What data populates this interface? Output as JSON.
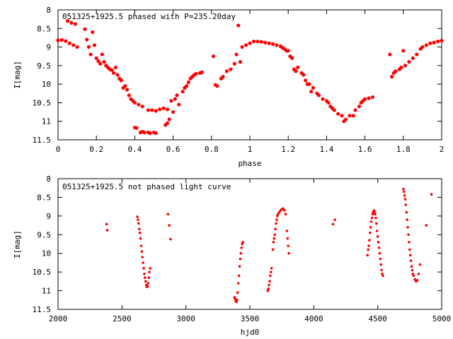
{
  "chart_data": [
    {
      "type": "scatter",
      "title": "051325+1925.5 phased with P=235.20day",
      "xlabel": "phase",
      "ylabel": "I[mag]",
      "xlim": [
        0,
        2
      ],
      "ylim": [
        11.5,
        8
      ],
      "y_inverted": true,
      "grid": false,
      "marker_color": "#ff0000",
      "xticks": [
        0,
        0.2,
        0.4,
        0.6,
        0.8,
        1,
        1.2,
        1.4,
        1.6,
        1.8,
        2
      ],
      "xtick_labels": [
        "0",
        "0.2",
        "0.4",
        "0.6",
        "0.8",
        "1",
        "1.2",
        "1.4",
        "1.6",
        "1.8",
        "2"
      ],
      "yticks": [
        8,
        8.5,
        9,
        9.5,
        10,
        10.5,
        11,
        11.5
      ],
      "ytick_labels": [
        "8",
        "8.5",
        "9",
        "9.5",
        "10",
        "10.5",
        "11",
        "11.5"
      ],
      "points": [
        [
          0.0,
          8.82
        ],
        [
          0.02,
          8.81
        ],
        [
          0.04,
          8.84
        ],
        [
          0.06,
          8.9
        ],
        [
          0.08,
          8.95
        ],
        [
          0.1,
          9.0
        ],
        [
          0.05,
          8.3
        ],
        [
          0.07,
          8.35
        ],
        [
          0.09,
          8.38
        ],
        [
          0.14,
          8.52
        ],
        [
          0.15,
          8.8
        ],
        [
          0.16,
          9.0
        ],
        [
          0.17,
          9.2
        ],
        [
          0.18,
          8.6
        ],
        [
          0.19,
          8.95
        ],
        [
          0.2,
          9.3
        ],
        [
          0.21,
          9.38
        ],
        [
          0.22,
          9.45
        ],
        [
          0.23,
          9.2
        ],
        [
          0.24,
          9.4
        ],
        [
          0.25,
          9.5
        ],
        [
          0.26,
          9.55
        ],
        [
          0.27,
          9.6
        ],
        [
          0.28,
          9.62
        ],
        [
          0.29,
          9.7
        ],
        [
          0.3,
          9.55
        ],
        [
          0.31,
          9.75
        ],
        [
          0.32,
          9.85
        ],
        [
          0.33,
          9.9
        ],
        [
          0.34,
          10.1
        ],
        [
          0.35,
          10.05
        ],
        [
          0.36,
          10.15
        ],
        [
          0.37,
          10.3
        ],
        [
          0.38,
          10.4
        ],
        [
          0.39,
          10.45
        ],
        [
          0.4,
          10.5
        ],
        [
          0.42,
          10.55
        ],
        [
          0.44,
          10.6
        ],
        [
          0.4,
          11.17
        ],
        [
          0.41,
          11.18
        ],
        [
          0.43,
          11.3
        ],
        [
          0.44,
          11.28
        ],
        [
          0.45,
          11.3
        ],
        [
          0.47,
          11.3
        ],
        [
          0.48,
          11.32
        ],
        [
          0.5,
          11.3
        ],
        [
          0.51,
          11.32
        ],
        [
          0.47,
          10.7
        ],
        [
          0.49,
          10.7
        ],
        [
          0.51,
          10.72
        ],
        [
          0.53,
          10.68
        ],
        [
          0.55,
          10.65
        ],
        [
          0.57,
          10.68
        ],
        [
          0.56,
          11.1
        ],
        [
          0.57,
          11.05
        ],
        [
          0.58,
          10.95
        ],
        [
          0.6,
          10.75
        ],
        [
          0.59,
          10.45
        ],
        [
          0.61,
          10.4
        ],
        [
          0.62,
          10.3
        ],
        [
          0.63,
          10.55
        ],
        [
          0.65,
          10.2
        ],
        [
          0.66,
          10.1
        ],
        [
          0.67,
          10.05
        ],
        [
          0.68,
          9.95
        ],
        [
          0.69,
          9.85
        ],
        [
          0.7,
          9.8
        ],
        [
          0.71,
          9.75
        ],
        [
          0.72,
          9.72
        ],
        [
          0.74,
          9.7
        ],
        [
          0.75,
          9.68
        ],
        [
          0.81,
          9.25
        ],
        [
          0.82,
          10.02
        ],
        [
          0.83,
          10.05
        ],
        [
          0.85,
          9.85
        ],
        [
          0.86,
          9.8
        ],
        [
          0.88,
          9.65
        ],
        [
          0.9,
          9.6
        ],
        [
          0.92,
          9.45
        ],
        [
          0.93,
          9.2
        ],
        [
          0.94,
          8.42
        ],
        [
          0.95,
          9.4
        ],
        [
          0.96,
          9.0
        ],
        [
          0.98,
          8.95
        ],
        [
          1.0,
          8.9
        ],
        [
          1.02,
          8.85
        ],
        [
          1.04,
          8.85
        ],
        [
          1.06,
          8.86
        ],
        [
          1.08,
          8.88
        ],
        [
          1.1,
          8.9
        ],
        [
          1.12,
          8.92
        ],
        [
          1.14,
          8.95
        ],
        [
          1.16,
          8.98
        ],
        [
          1.17,
          9.02
        ],
        [
          1.18,
          9.05
        ],
        [
          1.19,
          9.1
        ],
        [
          1.2,
          9.1
        ],
        [
          1.21,
          9.25
        ],
        [
          1.22,
          9.3
        ],
        [
          1.23,
          9.6
        ],
        [
          1.24,
          9.65
        ],
        [
          1.25,
          9.55
        ],
        [
          1.27,
          9.7
        ],
        [
          1.28,
          9.75
        ],
        [
          1.29,
          9.9
        ],
        [
          1.3,
          10.0
        ],
        [
          1.31,
          10.0
        ],
        [
          1.32,
          10.2
        ],
        [
          1.33,
          10.1
        ],
        [
          1.35,
          10.25
        ],
        [
          1.36,
          10.3
        ],
        [
          1.38,
          10.4
        ],
        [
          1.4,
          10.45
        ],
        [
          1.41,
          10.5
        ],
        [
          1.42,
          10.6
        ],
        [
          1.43,
          10.65
        ],
        [
          1.44,
          10.7
        ],
        [
          1.46,
          10.8
        ],
        [
          1.48,
          10.85
        ],
        [
          1.49,
          11.0
        ],
        [
          1.5,
          10.95
        ],
        [
          1.52,
          10.85
        ],
        [
          1.54,
          10.85
        ],
        [
          1.55,
          10.7
        ],
        [
          1.57,
          10.6
        ],
        [
          1.58,
          10.5
        ],
        [
          1.59,
          10.45
        ],
        [
          1.6,
          10.4
        ],
        [
          1.62,
          10.38
        ],
        [
          1.64,
          10.35
        ],
        [
          1.73,
          9.2
        ],
        [
          1.74,
          9.8
        ],
        [
          1.75,
          9.7
        ],
        [
          1.76,
          9.65
        ],
        [
          1.78,
          9.6
        ],
        [
          1.79,
          9.55
        ],
        [
          1.8,
          9.1
        ],
        [
          1.81,
          9.5
        ],
        [
          1.83,
          9.4
        ],
        [
          1.85,
          9.3
        ],
        [
          1.87,
          9.2
        ],
        [
          1.89,
          9.05
        ],
        [
          1.9,
          9.0
        ],
        [
          1.92,
          8.95
        ],
        [
          1.94,
          8.9
        ],
        [
          1.96,
          8.88
        ],
        [
          1.98,
          8.85
        ],
        [
          2.0,
          8.83
        ]
      ]
    },
    {
      "type": "scatter",
      "title": "051325+1925.5 not phased light curve",
      "xlabel": "hjd0",
      "ylabel": "I[mag]",
      "xlim": [
        2000,
        5000
      ],
      "ylim": [
        11.5,
        8
      ],
      "y_inverted": true,
      "grid": false,
      "marker_color": "#ff0000",
      "xticks": [
        2000,
        2500,
        3000,
        3500,
        4000,
        4500,
        5000
      ],
      "xtick_labels": [
        "2000",
        "2500",
        "3000",
        "3500",
        "4000",
        "4500",
        "5000"
      ],
      "yticks": [
        8,
        8.5,
        9,
        9.5,
        10,
        10.5,
        11,
        11.5
      ],
      "ytick_labels": [
        "8",
        "8.5",
        "9",
        "9.5",
        "10",
        "10.5",
        "11",
        "11.5"
      ],
      "points": [
        [
          2380,
          9.22
        ],
        [
          2384,
          9.38
        ],
        [
          2620,
          9.02
        ],
        [
          2625,
          9.1
        ],
        [
          2630,
          9.2
        ],
        [
          2635,
          9.35
        ],
        [
          2640,
          9.45
        ],
        [
          2645,
          9.6
        ],
        [
          2650,
          9.8
        ],
        [
          2655,
          9.95
        ],
        [
          2660,
          10.1
        ],
        [
          2665,
          10.25
        ],
        [
          2670,
          10.4
        ],
        [
          2675,
          10.55
        ],
        [
          2680,
          10.65
        ],
        [
          2685,
          10.75
        ],
        [
          2690,
          10.85
        ],
        [
          2695,
          10.9
        ],
        [
          2700,
          10.88
        ],
        [
          2705,
          10.8
        ],
        [
          2710,
          10.65
        ],
        [
          2715,
          10.5
        ],
        [
          2720,
          10.4
        ],
        [
          2860,
          8.95
        ],
        [
          2870,
          9.25
        ],
        [
          2880,
          9.62
        ],
        [
          3380,
          11.18
        ],
        [
          3385,
          11.22
        ],
        [
          3390,
          11.28
        ],
        [
          3395,
          11.3
        ],
        [
          3400,
          11.25
        ],
        [
          3405,
          11.05
        ],
        [
          3410,
          10.8
        ],
        [
          3415,
          10.6
        ],
        [
          3420,
          10.35
        ],
        [
          3425,
          10.15
        ],
        [
          3430,
          10.0
        ],
        [
          3435,
          9.85
        ],
        [
          3440,
          9.75
        ],
        [
          3445,
          9.7
        ],
        [
          3640,
          11.0
        ],
        [
          3645,
          10.95
        ],
        [
          3650,
          10.85
        ],
        [
          3655,
          10.75
        ],
        [
          3660,
          10.6
        ],
        [
          3665,
          10.5
        ],
        [
          3670,
          10.4
        ],
        [
          3680,
          9.9
        ],
        [
          3685,
          9.7
        ],
        [
          3690,
          9.6
        ],
        [
          3695,
          9.5
        ],
        [
          3700,
          9.35
        ],
        [
          3705,
          9.2
        ],
        [
          3710,
          9.1
        ],
        [
          3715,
          9.0
        ],
        [
          3720,
          8.95
        ],
        [
          3730,
          8.9
        ],
        [
          3740,
          8.85
        ],
        [
          3750,
          8.82
        ],
        [
          3760,
          8.8
        ],
        [
          3770,
          8.85
        ],
        [
          3780,
          8.95
        ],
        [
          3790,
          9.4
        ],
        [
          3795,
          9.6
        ],
        [
          3800,
          9.8
        ],
        [
          3805,
          10.0
        ],
        [
          4150,
          9.22
        ],
        [
          4165,
          9.1
        ],
        [
          4420,
          10.05
        ],
        [
          4425,
          9.9
        ],
        [
          4430,
          9.8
        ],
        [
          4435,
          9.65
        ],
        [
          4440,
          9.45
        ],
        [
          4445,
          9.3
        ],
        [
          4450,
          9.15
        ],
        [
          4455,
          9.05
        ],
        [
          4460,
          8.95
        ],
        [
          4465,
          8.9
        ],
        [
          4470,
          8.85
        ],
        [
          4475,
          8.88
        ],
        [
          4480,
          8.95
        ],
        [
          4485,
          9.05
        ],
        [
          4490,
          9.2
        ],
        [
          4495,
          9.4
        ],
        [
          4500,
          9.55
        ],
        [
          4505,
          9.7
        ],
        [
          4510,
          9.85
        ],
        [
          4515,
          10.0
        ],
        [
          4520,
          10.15
        ],
        [
          4525,
          10.3
        ],
        [
          4530,
          10.45
        ],
        [
          4535,
          10.55
        ],
        [
          4540,
          10.6
        ],
        [
          4700,
          8.28
        ],
        [
          4705,
          8.35
        ],
        [
          4710,
          8.45
        ],
        [
          4715,
          8.55
        ],
        [
          4720,
          8.7
        ],
        [
          4725,
          8.9
        ],
        [
          4730,
          9.1
        ],
        [
          4735,
          9.3
        ],
        [
          4740,
          9.5
        ],
        [
          4745,
          9.7
        ],
        [
          4750,
          9.9
        ],
        [
          4755,
          10.05
        ],
        [
          4760,
          10.2
        ],
        [
          4765,
          10.35
        ],
        [
          4770,
          10.45
        ],
        [
          4775,
          10.55
        ],
        [
          4780,
          10.6
        ],
        [
          4790,
          10.7
        ],
        [
          4800,
          10.75
        ],
        [
          4810,
          10.72
        ],
        [
          4820,
          10.55
        ],
        [
          4830,
          10.3
        ],
        [
          4880,
          9.25
        ],
        [
          4920,
          8.42
        ]
      ]
    }
  ]
}
